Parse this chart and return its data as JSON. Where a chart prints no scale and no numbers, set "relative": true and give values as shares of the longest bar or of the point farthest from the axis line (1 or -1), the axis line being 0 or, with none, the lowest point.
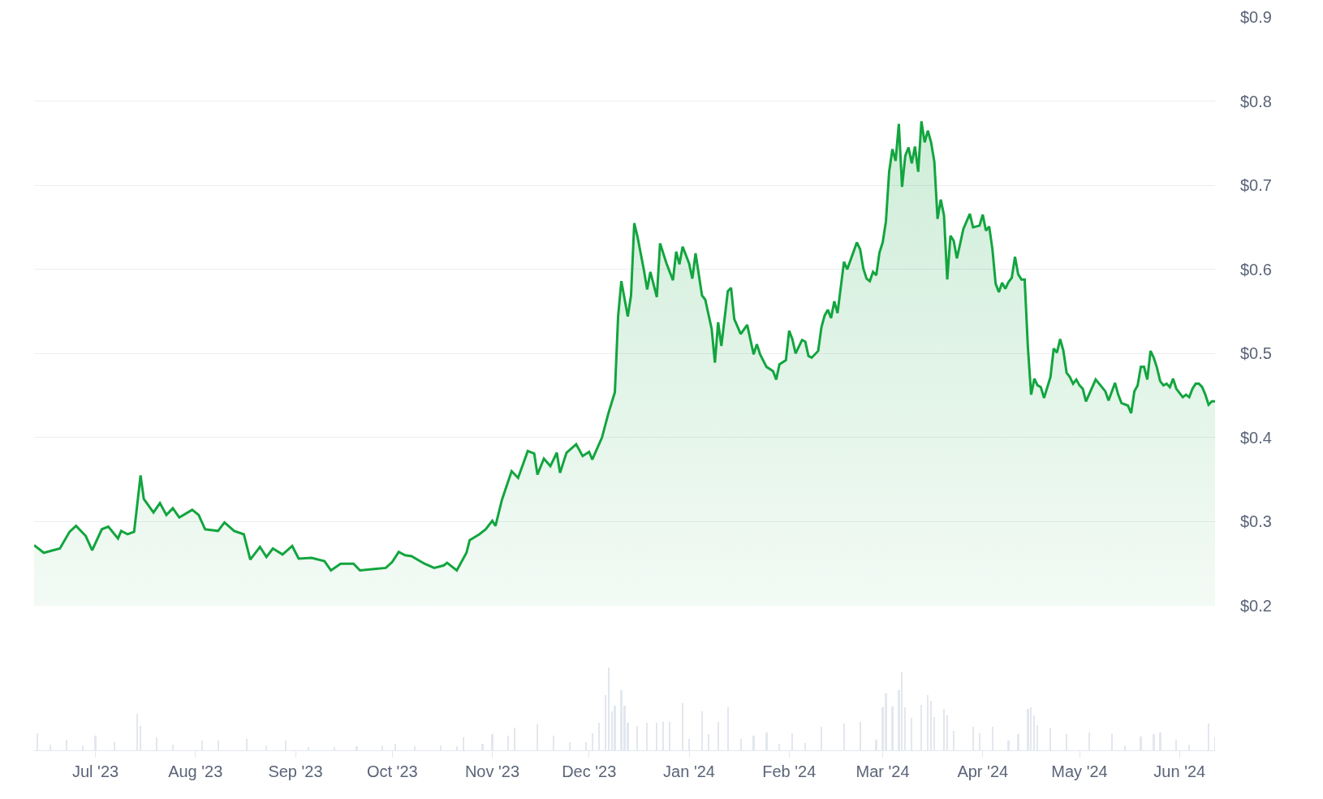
{
  "chart_data": [
    {
      "type": "area",
      "color": "#12a53f",
      "xlim": [
        "2023-06-12",
        "2024-06-12"
      ],
      "ylim": [
        0.2,
        0.9
      ],
      "grid": "y",
      "tick_labels": "y",
      "yticks": [
        {
          "value": 0.2,
          "label": "$0.2"
        },
        {
          "value": 0.3,
          "label": "$0.3"
        },
        {
          "value": 0.4,
          "label": "$0.4"
        },
        {
          "value": 0.5,
          "label": "$0.5"
        },
        {
          "value": 0.6,
          "label": "$0.6"
        },
        {
          "value": 0.7,
          "label": "$0.7"
        },
        {
          "value": 0.8,
          "label": "$0.8"
        },
        {
          "value": 0.9,
          "label": "$0.9"
        }
      ],
      "x": [
        "2023-06-12",
        "2023-06-15",
        "2023-06-20",
        "2023-06-23",
        "2023-06-25",
        "2023-06-28",
        "2023-06-30",
        "2023-07-03",
        "2023-07-05",
        "2023-07-08",
        "2023-07-09",
        "2023-07-11",
        "2023-07-13",
        "2023-07-15",
        "2023-07-16",
        "2023-07-19",
        "2023-07-21",
        "2023-07-23",
        "2023-07-25",
        "2023-07-27",
        "2023-07-31",
        "2023-08-02",
        "2023-08-04",
        "2023-08-08",
        "2023-08-10",
        "2023-08-13",
        "2023-08-16",
        "2023-08-18",
        "2023-08-21",
        "2023-08-23",
        "2023-08-25",
        "2023-08-28",
        "2023-08-31",
        "2023-09-02",
        "2023-09-06",
        "2023-09-10",
        "2023-09-12",
        "2023-09-15",
        "2023-09-19",
        "2023-09-21",
        "2023-09-26",
        "2023-09-29",
        "2023-10-01",
        "2023-10-03",
        "2023-10-05",
        "2023-10-07",
        "2023-10-11",
        "2023-10-14",
        "2023-10-17",
        "2023-10-18",
        "2023-10-21",
        "2023-10-24",
        "2023-10-25",
        "2023-10-28",
        "2023-10-30",
        "2023-11-01",
        "2023-11-02",
        "2023-11-04",
        "2023-11-07",
        "2023-11-09",
        "2023-11-12",
        "2023-11-14",
        "2023-11-15",
        "2023-11-17",
        "2023-11-19",
        "2023-11-21",
        "2023-11-22",
        "2023-11-24",
        "2023-11-27",
        "2023-11-29",
        "2023-12-01",
        "2023-12-02",
        "2023-12-05",
        "2023-12-07",
        "2023-12-09",
        "2023-12-10",
        "2023-12-11",
        "2023-12-13",
        "2023-12-14",
        "2023-12-15",
        "2023-12-16",
        "2023-12-18",
        "2023-12-19",
        "2023-12-20",
        "2023-12-22",
        "2023-12-23",
        "2023-12-25",
        "2023-12-27",
        "2023-12-28",
        "2023-12-29",
        "2023-12-30",
        "2024-01-01",
        "2024-01-02",
        "2024-01-03",
        "2024-01-05",
        "2024-01-06",
        "2024-01-08",
        "2024-01-09",
        "2024-01-10",
        "2024-01-11",
        "2024-01-13",
        "2024-01-14",
        "2024-01-15",
        "2024-01-17",
        "2024-01-19",
        "2024-01-21",
        "2024-01-22",
        "2024-01-23",
        "2024-01-25",
        "2024-01-27",
        "2024-01-28",
        "2024-01-29",
        "2024-01-31",
        "2024-02-01",
        "2024-02-02",
        "2024-02-03",
        "2024-02-05",
        "2024-02-06",
        "2024-02-07",
        "2024-02-08",
        "2024-02-10",
        "2024-02-11",
        "2024-02-12",
        "2024-02-13",
        "2024-02-14",
        "2024-02-15",
        "2024-02-16",
        "2024-02-18",
        "2024-02-19",
        "2024-02-22",
        "2024-02-23",
        "2024-02-24",
        "2024-02-25",
        "2024-02-26",
        "2024-02-27",
        "2024-02-28",
        "2024-02-29",
        "2024-03-01",
        "2024-03-02",
        "2024-03-03",
        "2024-03-04",
        "2024-03-05",
        "2024-03-06",
        "2024-03-07",
        "2024-03-08",
        "2024-03-09",
        "2024-03-10",
        "2024-03-11",
        "2024-03-12",
        "2024-03-13",
        "2024-03-14",
        "2024-03-15",
        "2024-03-16",
        "2024-03-17",
        "2024-03-18",
        "2024-03-19",
        "2024-03-20",
        "2024-03-21",
        "2024-03-22",
        "2024-03-23",
        "2024-03-24",
        "2024-03-26",
        "2024-03-28",
        "2024-03-29",
        "2024-03-31",
        "2024-04-01",
        "2024-04-02",
        "2024-04-03",
        "2024-04-04",
        "2024-04-05",
        "2024-04-06",
        "2024-04-07",
        "2024-04-08",
        "2024-04-09",
        "2024-04-10",
        "2024-04-11",
        "2024-04-12",
        "2024-04-13",
        "2024-04-14",
        "2024-04-15",
        "2024-04-16",
        "2024-04-17",
        "2024-04-18",
        "2024-04-19",
        "2024-04-20",
        "2024-04-22",
        "2024-04-23",
        "2024-04-24",
        "2024-04-25",
        "2024-04-26",
        "2024-04-27",
        "2024-04-28",
        "2024-04-29",
        "2024-04-30",
        "2024-05-01",
        "2024-05-02",
        "2024-05-03",
        "2024-05-06",
        "2024-05-09",
        "2024-05-10",
        "2024-05-12",
        "2024-05-13",
        "2024-05-14",
        "2024-05-16",
        "2024-05-17",
        "2024-05-18",
        "2024-05-19",
        "2024-05-20",
        "2024-05-21",
        "2024-05-22",
        "2024-05-23",
        "2024-05-24",
        "2024-05-25",
        "2024-05-26",
        "2024-05-27",
        "2024-05-28",
        "2024-05-29",
        "2024-05-30",
        "2024-05-31",
        "2024-06-02",
        "2024-06-03",
        "2024-06-04",
        "2024-06-05",
        "2024-06-06",
        "2024-06-07",
        "2024-06-08",
        "2024-06-09",
        "2024-06-10",
        "2024-06-11",
        "2024-06-12"
      ],
      "values": [
        0.272,
        0.263,
        0.268,
        0.288,
        0.295,
        0.283,
        0.266,
        0.291,
        0.294,
        0.28,
        0.289,
        0.285,
        0.288,
        0.355,
        0.327,
        0.311,
        0.322,
        0.308,
        0.316,
        0.305,
        0.314,
        0.308,
        0.291,
        0.289,
        0.299,
        0.289,
        0.285,
        0.255,
        0.27,
        0.258,
        0.268,
        0.261,
        0.271,
        0.256,
        0.257,
        0.253,
        0.242,
        0.25,
        0.25,
        0.242,
        0.244,
        0.245,
        0.252,
        0.264,
        0.26,
        0.259,
        0.25,
        0.245,
        0.248,
        0.251,
        0.242,
        0.263,
        0.278,
        0.285,
        0.291,
        0.301,
        0.295,
        0.326,
        0.36,
        0.352,
        0.384,
        0.381,
        0.356,
        0.375,
        0.366,
        0.382,
        0.358,
        0.382,
        0.392,
        0.378,
        0.383,
        0.374,
        0.4,
        0.429,
        0.454,
        0.544,
        0.586,
        0.544,
        0.569,
        0.655,
        0.639,
        0.599,
        0.576,
        0.597,
        0.567,
        0.631,
        0.607,
        0.587,
        0.621,
        0.606,
        0.627,
        0.607,
        0.589,
        0.619,
        0.569,
        0.564,
        0.529,
        0.489,
        0.537,
        0.509,
        0.574,
        0.578,
        0.541,
        0.523,
        0.534,
        0.499,
        0.511,
        0.499,
        0.484,
        0.479,
        0.469,
        0.487,
        0.492,
        0.527,
        0.517,
        0.5,
        0.516,
        0.514,
        0.497,
        0.495,
        0.503,
        0.531,
        0.545,
        0.552,
        0.542,
        0.562,
        0.548,
        0.609,
        0.6,
        0.632,
        0.624,
        0.601,
        0.589,
        0.586,
        0.597,
        0.593,
        0.62,
        0.632,
        0.657,
        0.716,
        0.743,
        0.729,
        0.773,
        0.698,
        0.735,
        0.745,
        0.726,
        0.746,
        0.716,
        0.776,
        0.751,
        0.765,
        0.751,
        0.728,
        0.66,
        0.683,
        0.664,
        0.588,
        0.64,
        0.634,
        0.613,
        0.648,
        0.666,
        0.65,
        0.652,
        0.665,
        0.646,
        0.651,
        0.624,
        0.583,
        0.573,
        0.584,
        0.577,
        0.585,
        0.59,
        0.615,
        0.594,
        0.588,
        0.588,
        0.507,
        0.451,
        0.47,
        0.462,
        0.46,
        0.447,
        0.472,
        0.506,
        0.501,
        0.517,
        0.503,
        0.477,
        0.472,
        0.464,
        0.469,
        0.462,
        0.458,
        0.443,
        0.469,
        0.455,
        0.444,
        0.465,
        0.451,
        0.441,
        0.438,
        0.429,
        0.455,
        0.462,
        0.484,
        0.484,
        0.469,
        0.503,
        0.495,
        0.483,
        0.467,
        0.462,
        0.464,
        0.46,
        0.47,
        0.458,
        0.448,
        0.451,
        0.448,
        0.458,
        0.464,
        0.464,
        0.46,
        0.451,
        0.439,
        0.443,
        0.443
      ]
    },
    {
      "type": "bar",
      "relative": true,
      "color": "#e3e7ee",
      "xlim": [
        "2023-06-12",
        "2024-06-12"
      ],
      "tick_labels": "x",
      "xticks": [
        {
          "value": "2023-07-01",
          "label": "Jul '23"
        },
        {
          "value": "2023-08-01",
          "label": "Aug '23"
        },
        {
          "value": "2023-09-01",
          "label": "Sep '23"
        },
        {
          "value": "2023-10-01",
          "label": "Oct '23"
        },
        {
          "value": "2023-11-01",
          "label": "Nov '23"
        },
        {
          "value": "2023-12-01",
          "label": "Dec '23"
        },
        {
          "value": "2024-01-01",
          "label": "Jan '24"
        },
        {
          "value": "2024-02-01",
          "label": "Feb '24"
        },
        {
          "value": "2024-03-01",
          "label": "Mar '24"
        },
        {
          "value": "2024-04-01",
          "label": "Apr '24"
        },
        {
          "value": "2024-05-01",
          "label": "May '24"
        },
        {
          "value": "2024-06-01",
          "label": "Jun '24"
        }
      ],
      "x": [
        "2023-06-13",
        "2023-06-17",
        "2023-06-22",
        "2023-06-27",
        "2023-07-01",
        "2023-07-07",
        "2023-07-14",
        "2023-07-15",
        "2023-07-20",
        "2023-07-25",
        "2023-08-03",
        "2023-08-08",
        "2023-08-17",
        "2023-08-23",
        "2023-08-29",
        "2023-09-05",
        "2023-09-13",
        "2023-09-20",
        "2023-09-28",
        "2023-10-02",
        "2023-10-08",
        "2023-10-16",
        "2023-10-21",
        "2023-10-23",
        "2023-10-29",
        "2023-11-01",
        "2023-11-06",
        "2023-11-08",
        "2023-11-15",
        "2023-11-20",
        "2023-11-25",
        "2023-11-30",
        "2023-12-02",
        "2023-12-04",
        "2023-12-06",
        "2023-12-07",
        "2023-12-08",
        "2023-12-09",
        "2023-12-11",
        "2023-12-12",
        "2023-12-13",
        "2023-12-16",
        "2023-12-19",
        "2023-12-22",
        "2023-12-24",
        "2023-12-26",
        "2023-12-30",
        "2024-01-01",
        "2024-01-05",
        "2024-01-07",
        "2024-01-10",
        "2024-01-13",
        "2024-01-17",
        "2024-01-21",
        "2024-01-25",
        "2024-01-29",
        "2024-02-02",
        "2024-02-06",
        "2024-02-11",
        "2024-02-18",
        "2024-02-23",
        "2024-02-28",
        "2024-03-01",
        "2024-03-02",
        "2024-03-04",
        "2024-03-06",
        "2024-03-07",
        "2024-03-08",
        "2024-03-10",
        "2024-03-13",
        "2024-03-15",
        "2024-03-16",
        "2024-03-17",
        "2024-03-20",
        "2024-03-21",
        "2024-03-23",
        "2024-03-29",
        "2024-03-31",
        "2024-04-04",
        "2024-04-09",
        "2024-04-12",
        "2024-04-15",
        "2024-04-16",
        "2024-04-17",
        "2024-04-18",
        "2024-04-22",
        "2024-04-27",
        "2024-05-04",
        "2024-05-11",
        "2024-05-15",
        "2024-05-20",
        "2024-05-24",
        "2024-05-26",
        "2024-05-31",
        "2024-06-04",
        "2024-06-10",
        "2024-06-12"
      ],
      "values": [
        0.21,
        0.07,
        0.13,
        0.06,
        0.18,
        0.1,
        0.44,
        0.29,
        0.16,
        0.07,
        0.12,
        0.12,
        0.14,
        0.06,
        0.12,
        0.04,
        0.04,
        0.05,
        0.06,
        0.08,
        0.05,
        0.06,
        0.05,
        0.16,
        0.08,
        0.2,
        0.18,
        0.27,
        0.31,
        0.18,
        0.1,
        0.1,
        0.21,
        0.33,
        0.67,
        1,
        0.47,
        0.54,
        0.73,
        0.54,
        0.33,
        0.29,
        0.33,
        0.33,
        0.34,
        0.34,
        0.57,
        0.14,
        0.47,
        0.2,
        0.34,
        0.52,
        0.14,
        0.18,
        0.22,
        0.08,
        0.21,
        0.09,
        0.28,
        0.32,
        0.34,
        0.13,
        0.52,
        0.69,
        0.53,
        0.73,
        0.94,
        0.52,
        0.39,
        0.55,
        0.67,
        0.6,
        0.4,
        0.5,
        0.42,
        0.24,
        0.28,
        0.21,
        0.28,
        0.12,
        0.2,
        0.5,
        0.52,
        0.42,
        0.3,
        0.26,
        0.2,
        0.22,
        0.2,
        0.06,
        0.17,
        0.2,
        0.22,
        0.13,
        0.07,
        0.32,
        0.16
      ]
    }
  ]
}
